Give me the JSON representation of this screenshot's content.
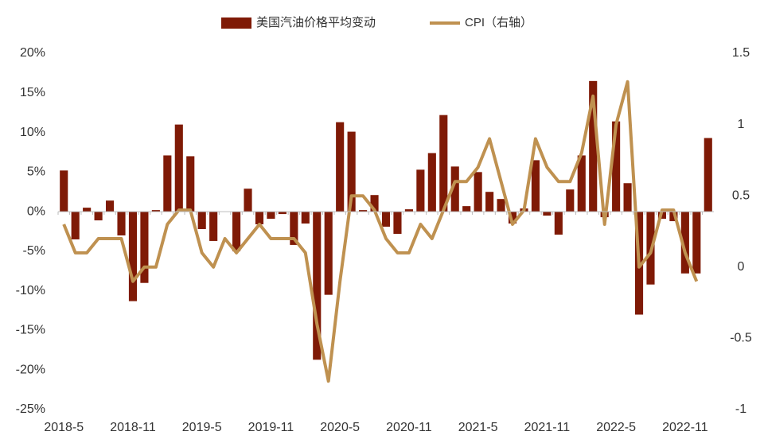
{
  "chart_data": {
    "type": "bar-line",
    "categories": [
      "2018-5",
      null,
      null,
      null,
      null,
      null,
      "2018-11",
      null,
      null,
      null,
      null,
      null,
      "2019-5",
      null,
      null,
      null,
      null,
      null,
      "2019-11",
      null,
      null,
      null,
      null,
      null,
      "2020-5",
      null,
      null,
      null,
      null,
      null,
      "2020-11",
      null,
      null,
      null,
      null,
      null,
      "2021-5",
      null,
      null,
      null,
      null,
      null,
      "2021-11",
      null,
      null,
      null,
      null,
      null,
      "2022-5",
      null,
      null,
      null,
      null,
      null,
      "2022-11",
      null,
      null
    ],
    "series": [
      {
        "name": "美国汽油价格平均变动",
        "type": "bar",
        "color": "#7f1a06",
        "values": [
          5.2,
          -3.5,
          0.5,
          -1.1,
          1.4,
          -3,
          -11.3,
          -9,
          0.2,
          7.1,
          11,
          7,
          -2.2,
          -3.7,
          0,
          -5,
          2.9,
          -1.6,
          -0.9,
          -0.3,
          -4.2,
          -1.5,
          -18.7,
          -10.5,
          11.3,
          10.1,
          0.2,
          2.1,
          -1.9,
          -2.8,
          0.3,
          5.3,
          7.4,
          12.2,
          5.7,
          0.7,
          5,
          2.5,
          1.6,
          -1.5,
          0.4,
          6.5,
          -0.5,
          -2.9,
          2.8,
          7.1,
          16.5,
          -0.7,
          11.4,
          3.6,
          -13,
          -9.2,
          -0.9,
          -1.2,
          -7.8,
          -7.8,
          9.3
        ]
      },
      {
        "name": "CPI（右轴）",
        "type": "line",
        "axis": "y2",
        "color": "#bf9150",
        "values": [
          0.3,
          0.1,
          0.1,
          0.2,
          0.2,
          0.2,
          -0.1,
          0,
          0,
          0.3,
          0.4,
          0.4,
          0.1,
          0,
          0.2,
          0.1,
          0.2,
          0.3,
          0.2,
          0.2,
          0.2,
          0.1,
          -0.4,
          -0.8,
          -0.1,
          0.5,
          0.5,
          0.4,
          0.2,
          0.1,
          0.1,
          0.3,
          0.2,
          0.4,
          0.6,
          0.6,
          0.7,
          0.9,
          0.6,
          0.3,
          0.4,
          0.9,
          0.7,
          0.6,
          0.6,
          0.8,
          1.2,
          0.3,
          1.0,
          1.3,
          0,
          0.1,
          0.4,
          0.4,
          0.1,
          -0.1,
          null
        ]
      }
    ],
    "ylim": [
      -25,
      20
    ],
    "yticks": [
      {
        "value": 20,
        "label": "20%"
      },
      {
        "value": 15,
        "label": "15%"
      },
      {
        "value": 10,
        "label": "10%"
      },
      {
        "value": 5,
        "label": "5%"
      },
      {
        "value": 0,
        "label": "0%"
      },
      {
        "value": -5,
        "label": "-5%"
      },
      {
        "value": -10,
        "label": "-10%"
      },
      {
        "value": -15,
        "label": "-15%"
      },
      {
        "value": -20,
        "label": "-20%"
      },
      {
        "value": -25,
        "label": "-25%"
      }
    ],
    "y2lim": [
      -1,
      1.5
    ],
    "y2ticks": [
      1.5,
      1,
      0.5,
      0,
      -0.5,
      -1
    ],
    "legend": "top"
  }
}
